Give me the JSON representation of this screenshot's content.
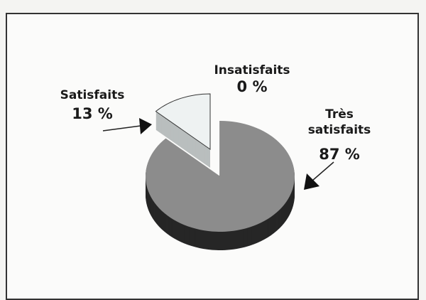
{
  "chart_data": {
    "type": "pie",
    "categories": [
      "Très satisfaits",
      "Satisfaits",
      "Insatisfaits"
    ],
    "values": [
      87,
      13,
      0
    ],
    "value_labels": [
      "87 %",
      "13 %",
      "0 %"
    ],
    "colors": [
      "#8c8c8c",
      "#eef2f2",
      "#ffffff"
    ]
  }
}
